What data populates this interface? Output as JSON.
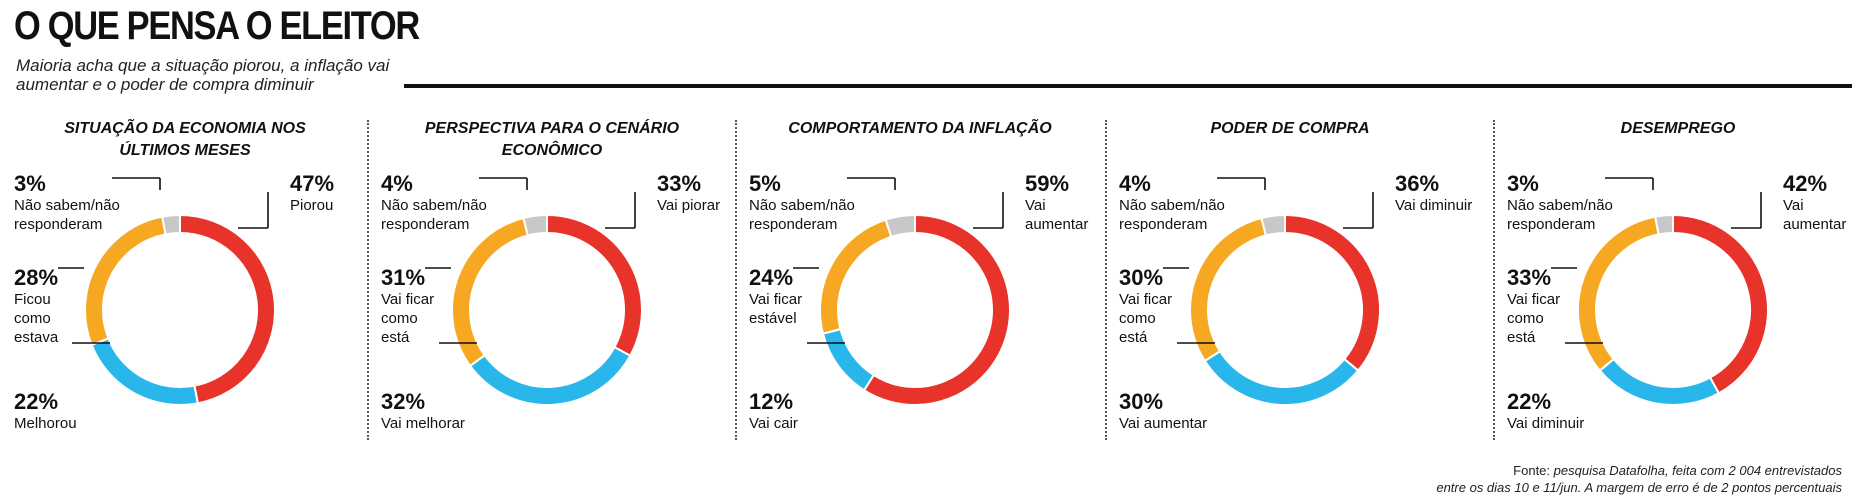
{
  "title": "O QUE PENSA O ELEITOR",
  "subtitle": "Maioria acha que a situação piorou, a inflação vai aumentar e o poder de compra diminuir",
  "colors": {
    "red": "#e8332a",
    "blue": "#29b6ea",
    "orange": "#f6a823",
    "gray": "#c8c8c8"
  },
  "source": {
    "prefix": "Fonte:",
    "line1": "pesquisa Datafolha, feita com 2 004 entrevistados",
    "line2": "entre os dias 10 e 11/jun. A margem de erro é de 2 pontos percentuais"
  },
  "chart_data": [
    {
      "type": "pie",
      "title": "SITUAÇÃO DA ECONOMIA NOS ÚLTIMOS MESES",
      "title_lines": [
        "SITUAÇÃO DA ECONOMIA NOS",
        "ÚLTIMOS MESES"
      ],
      "slices": [
        {
          "label": "Piorou",
          "label_lines": [
            "Piorou"
          ],
          "value": 47,
          "pct": "47%",
          "color": "#e8332a"
        },
        {
          "label": "Melhorou",
          "label_lines": [
            "Melhorou"
          ],
          "value": 22,
          "pct": "22%",
          "color": "#29b6ea"
        },
        {
          "label": "Ficou como estava",
          "label_lines": [
            "Ficou",
            "como",
            "estava"
          ],
          "value": 28,
          "pct": "28%",
          "color": "#f6a823"
        },
        {
          "label": "Não sabem/não responderam",
          "label_lines": [
            "Não sabem/não",
            "responderam"
          ],
          "value": 3,
          "pct": "3%",
          "color": "#c8c8c8"
        }
      ]
    },
    {
      "type": "pie",
      "title": "PERSPECTIVA PARA O CENÁRIO ECONÔMICO",
      "title_lines": [
        "PERSPECTIVA PARA O CENÁRIO",
        "ECONÔMICO"
      ],
      "slices": [
        {
          "label": "Vai piorar",
          "label_lines": [
            "Vai piorar"
          ],
          "value": 33,
          "pct": "33%",
          "color": "#e8332a"
        },
        {
          "label": "Vai melhorar",
          "label_lines": [
            "Vai melhorar"
          ],
          "value": 32,
          "pct": "32%",
          "color": "#29b6ea"
        },
        {
          "label": "Vai ficar como está",
          "label_lines": [
            "Vai ficar",
            "como",
            "está"
          ],
          "value": 31,
          "pct": "31%",
          "color": "#f6a823"
        },
        {
          "label": "Não sabem/não responderam",
          "label_lines": [
            "Não sabem/não",
            "responderam"
          ],
          "value": 4,
          "pct": "4%",
          "color": "#c8c8c8"
        }
      ]
    },
    {
      "type": "pie",
      "title": "COMPORTAMENTO DA INFLAÇÃO",
      "title_lines": [
        "COMPORTAMENTO DA INFLAÇÃO"
      ],
      "slices": [
        {
          "label": "Vai aumentar",
          "label_lines": [
            "Vai aumentar"
          ],
          "value": 59,
          "pct": "59%",
          "color": "#e8332a"
        },
        {
          "label": "Vai cair",
          "label_lines": [
            "Vai cair"
          ],
          "value": 12,
          "pct": "12%",
          "color": "#29b6ea"
        },
        {
          "label": "Vai ficar estável",
          "label_lines": [
            "Vai ficar",
            "estável"
          ],
          "value": 24,
          "pct": "24%",
          "color": "#f6a823"
        },
        {
          "label": "Não sabem/não responderam",
          "label_lines": [
            "Não sabem/não",
            "responderam"
          ],
          "value": 5,
          "pct": "5%",
          "color": "#c8c8c8"
        }
      ]
    },
    {
      "type": "pie",
      "title": "PODER DE COMPRA",
      "title_lines": [
        "PODER DE COMPRA"
      ],
      "slices": [
        {
          "label": "Vai diminuir",
          "label_lines": [
            "Vai diminuir"
          ],
          "value": 36,
          "pct": "36%",
          "color": "#e8332a"
        },
        {
          "label": "Vai aumentar",
          "label_lines": [
            "Vai aumentar"
          ],
          "value": 30,
          "pct": "30%",
          "color": "#29b6ea"
        },
        {
          "label": "Vai ficar como está",
          "label_lines": [
            "Vai ficar",
            "como",
            "está"
          ],
          "value": 30,
          "pct": "30%",
          "color": "#f6a823"
        },
        {
          "label": "Não sabem/não responderam",
          "label_lines": [
            "Não sabem/não",
            "responderam"
          ],
          "value": 4,
          "pct": "4%",
          "color": "#c8c8c8"
        }
      ]
    },
    {
      "type": "pie",
      "title": "DESEMPREGO",
      "title_lines": [
        "DESEMPREGO"
      ],
      "slices": [
        {
          "label": "Vai aumentar",
          "label_lines": [
            "Vai aumentar"
          ],
          "value": 42,
          "pct": "42%",
          "color": "#e8332a"
        },
        {
          "label": "Vai diminuir",
          "label_lines": [
            "Vai diminuir"
          ],
          "value": 22,
          "pct": "22%",
          "color": "#29b6ea"
        },
        {
          "label": "Vai ficar como está",
          "label_lines": [
            "Vai ficar",
            "como",
            "está"
          ],
          "value": 33,
          "pct": "33%",
          "color": "#f6a823"
        },
        {
          "label": "Não sabem/não responderam",
          "label_lines": [
            "Não sabem/não",
            "responderam"
          ],
          "value": 3,
          "pct": "3%",
          "color": "#c8c8c8"
        }
      ]
    }
  ]
}
